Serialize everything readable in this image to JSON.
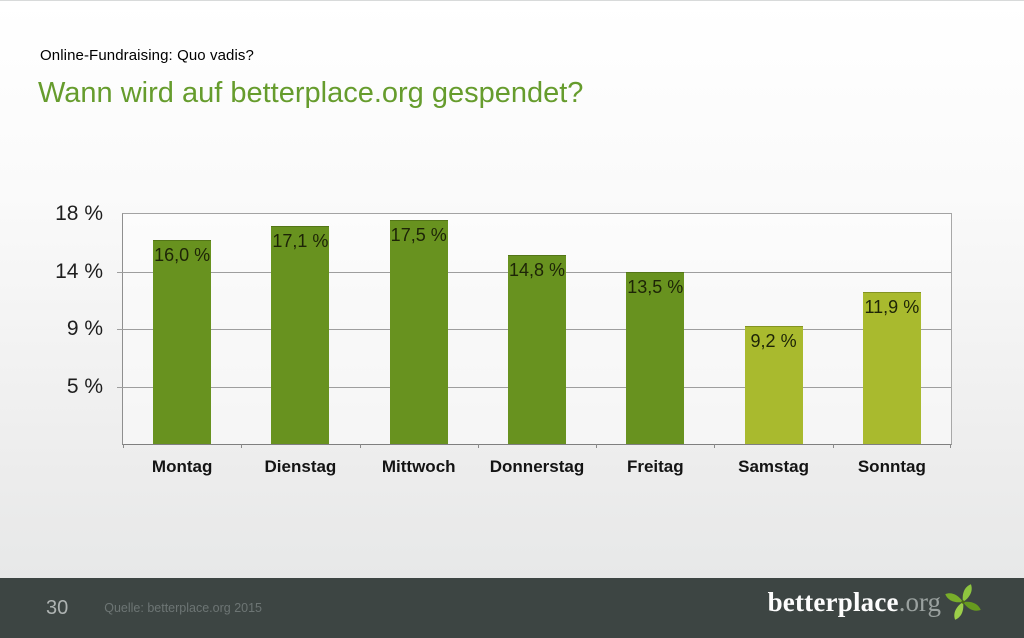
{
  "slide": {
    "kicker": "Online-Fundraising: Quo vadis?",
    "title": "Wann wird auf betterplace.org gespendet?"
  },
  "colors": {
    "title_green": "#669c2d",
    "bar_weekday": "#68921f",
    "bar_weekend": "#a9ba2e",
    "footer_bg": "#3d4543",
    "gridline": "#9e9e9e"
  },
  "chart_data": {
    "type": "bar",
    "title": "Wann wird auf betterplace.org gespendet?",
    "categories": [
      "Montag",
      "Dienstag",
      "Mittwoch",
      "Donnerstag",
      "Freitag",
      "Samstag",
      "Sonntag"
    ],
    "values": [
      16.0,
      17.1,
      17.5,
      14.8,
      13.5,
      9.2,
      11.9
    ],
    "value_labels": [
      "16,0 %",
      "17,1 %",
      "17,5 %",
      "14,8 %",
      "13,5 %",
      "9,2 %",
      "11,9 %"
    ],
    "bar_colors": [
      "#68921f",
      "#68921f",
      "#68921f",
      "#68921f",
      "#68921f",
      "#a9ba2e",
      "#a9ba2e"
    ],
    "xlabel": "",
    "ylabel": "",
    "ylim": [
      0,
      18
    ],
    "yticks": [
      {
        "label": "18 %",
        "position_value": 18
      },
      {
        "label": "14 %",
        "position_value": 13.5
      },
      {
        "label": "9 %",
        "position_value": 9
      },
      {
        "label": "5 %",
        "position_value": 4.5
      }
    ],
    "grid": true,
    "legend_position": "none"
  },
  "footer": {
    "page_number": "30",
    "source": "Quelle: betterplace.org 2015",
    "logo_text": "betterplace",
    "logo_suffix": ".org"
  }
}
